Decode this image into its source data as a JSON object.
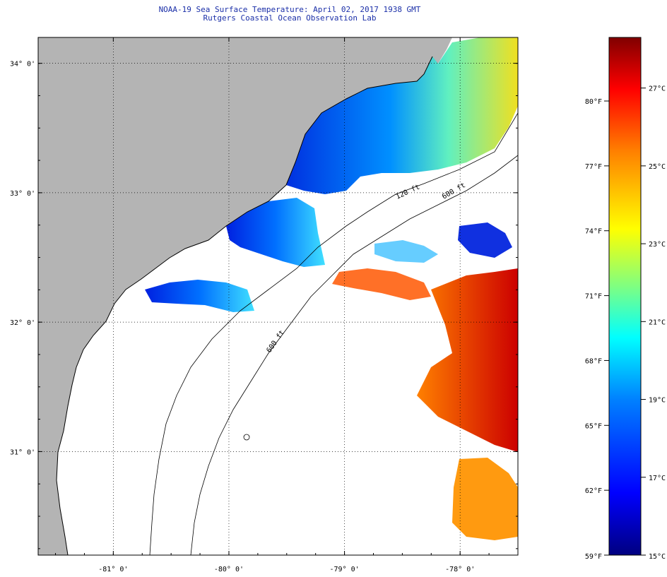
{
  "header": {
    "title": "NOAA-19 Sea Surface Temperature:  April 02, 2017 1938 GMT",
    "subtitle": "Rutgers Coastal Ocean Observation Lab"
  },
  "map": {
    "lat_labels": [
      "34° 0'",
      "33° 0'",
      "32° 0'",
      "31° 0'"
    ],
    "lat_values": [
      34,
      33,
      32,
      31
    ],
    "lon_labels": [
      "-81° 0'",
      "-80° 0'",
      "-79° 0'",
      "-78° 0'"
    ],
    "lon_values": [
      -81,
      -80,
      -79,
      -78
    ],
    "lat_range": [
      30.2,
      34.2
    ],
    "lon_range": [
      -81.65,
      -77.5
    ],
    "isobath_labels": [
      "120 ft",
      "600 ft",
      "600 ft"
    ],
    "land_color": "#b4b4b4",
    "cloud_color": "#ffffff"
  },
  "colorbar": {
    "fahrenheit_labels": [
      "80°F",
      "77°F",
      "74°F",
      "71°F",
      "68°F",
      "65°F",
      "62°F",
      "59°F"
    ],
    "celsius_labels": [
      "27°C",
      "25°C",
      "23°C",
      "21°C",
      "19°C",
      "17°C",
      "15°C"
    ],
    "celsius_values": [
      27,
      25,
      23,
      21,
      19,
      17,
      15
    ],
    "range_c": [
      15,
      28.3
    ],
    "colors": [
      "#000080",
      "#0000ff",
      "#0080ff",
      "#00ffff",
      "#80ff80",
      "#ffff00",
      "#ff8000",
      "#ff0000",
      "#800000"
    ]
  }
}
